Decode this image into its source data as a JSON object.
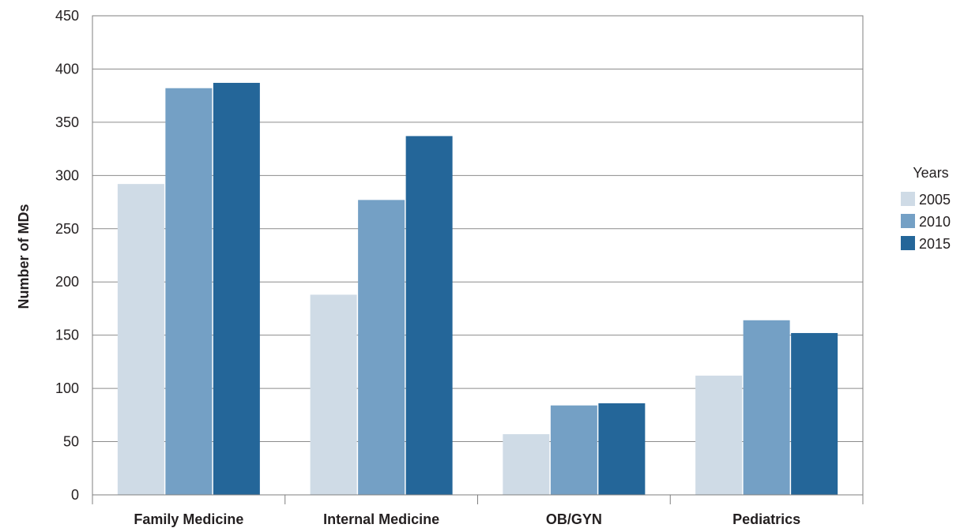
{
  "chart_data": {
    "type": "bar",
    "title": "",
    "xlabel": "",
    "ylabel": "Number of MDs",
    "ylim": [
      0,
      450
    ],
    "yticks": [
      0,
      50,
      100,
      150,
      200,
      250,
      300,
      350,
      400,
      450
    ],
    "grid": true,
    "legend_title": "Years",
    "legend_position": "right",
    "categories": [
      "Family Medicine",
      "Internal Medicine",
      "OB/GYN",
      "Pediatrics"
    ],
    "series": [
      {
        "name": "2005",
        "color": "#cfdbe6",
        "values": [
          292,
          188,
          57,
          112
        ]
      },
      {
        "name": "2010",
        "color": "#74a0c5",
        "values": [
          382,
          277,
          84,
          164
        ]
      },
      {
        "name": "2015",
        "color": "#246699",
        "values": [
          387,
          337,
          86,
          152
        ]
      }
    ]
  }
}
